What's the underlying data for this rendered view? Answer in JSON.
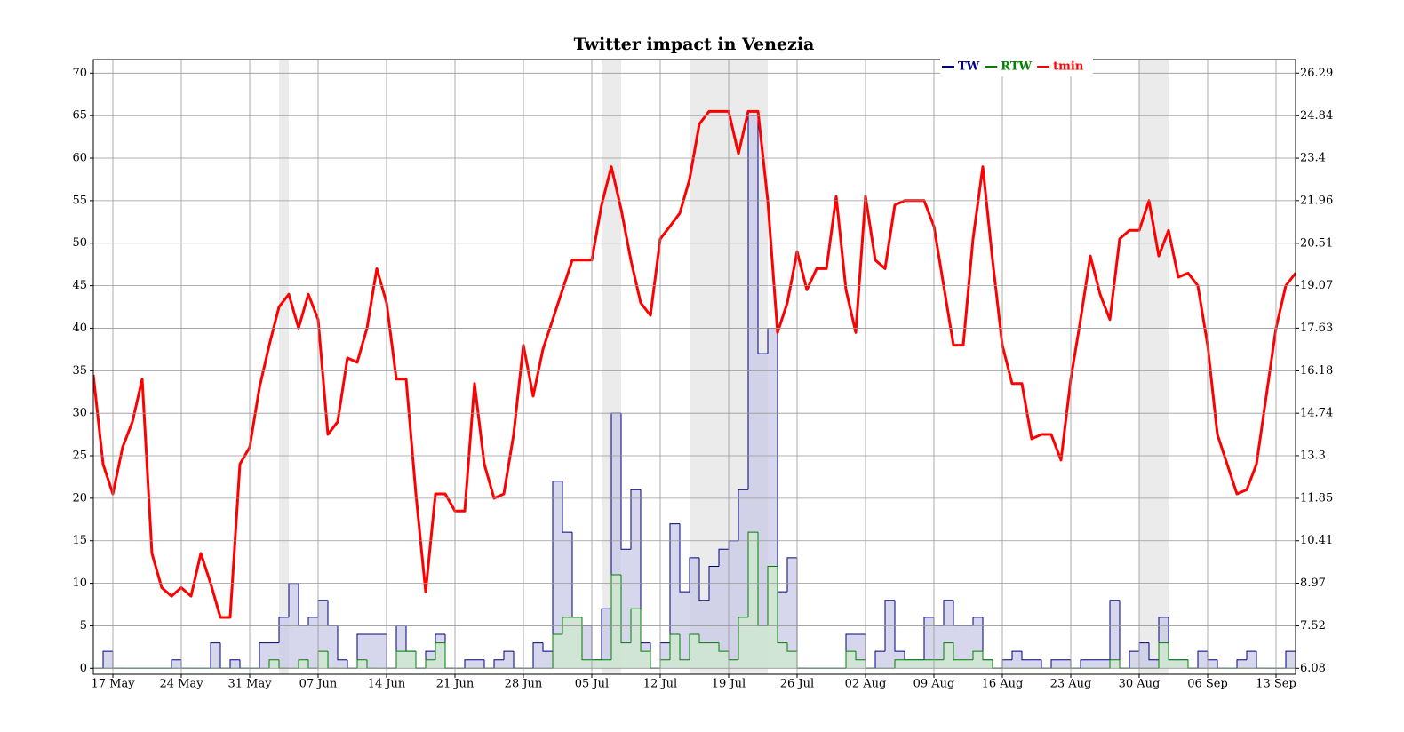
{
  "chart_data": {
    "type": "step-line",
    "title": "Twitter impact in Venezia",
    "x": [
      -2,
      -1,
      0,
      1,
      2,
      3,
      4,
      5,
      6,
      7,
      8,
      9,
      10,
      11,
      12,
      13,
      14,
      15,
      16,
      17,
      18,
      19,
      20,
      21,
      22,
      23,
      24,
      25,
      26,
      27,
      28,
      29,
      30,
      31,
      32,
      33,
      34,
      35,
      36,
      37,
      38,
      39,
      40,
      41,
      42,
      43,
      44,
      45,
      46,
      47,
      48,
      49,
      50,
      51,
      52,
      53,
      54,
      55,
      56,
      57,
      58,
      59,
      60,
      61,
      62,
      63,
      64,
      65,
      66,
      67,
      68,
      69,
      70,
      71,
      72,
      73,
      74,
      75,
      76,
      77,
      78,
      79,
      80,
      81,
      82,
      83,
      84,
      85,
      86,
      87,
      88,
      89,
      90,
      91,
      92,
      93,
      94,
      95,
      96,
      97,
      98,
      99,
      100,
      101,
      102,
      103,
      104,
      105,
      106,
      107,
      108,
      109,
      110,
      111,
      112,
      113,
      114,
      115,
      116,
      117,
      118,
      119,
      120,
      121
    ],
    "step": "post",
    "series": [
      {
        "name": "TW",
        "color": "#000080",
        "fill": "#c8c8e6",
        "kind": "step",
        "values": [
          0,
          2,
          0,
          0,
          0,
          0,
          0,
          0,
          1,
          0,
          0,
          0,
          3,
          0,
          1,
          0,
          0,
          3,
          3,
          6,
          10,
          5,
          6,
          8,
          5,
          1,
          0,
          4,
          4,
          4,
          0,
          5,
          2,
          0,
          2,
          4,
          0,
          0,
          1,
          1,
          0,
          1,
          2,
          0,
          0,
          3,
          2,
          22,
          16,
          6,
          5,
          1,
          7,
          30,
          14,
          21,
          3,
          0,
          3,
          17,
          9,
          13,
          8,
          12,
          14,
          15,
          21,
          65,
          37,
          40,
          9,
          13,
          0,
          0,
          0,
          0,
          0,
          4,
          4,
          0,
          2,
          8,
          2,
          1,
          1,
          6,
          5,
          8,
          5,
          5,
          6,
          1,
          0,
          1,
          2,
          1,
          1,
          0,
          1,
          1,
          0,
          1,
          1,
          1,
          8,
          0,
          2,
          3,
          1,
          6,
          1,
          1,
          0,
          2,
          1,
          0,
          0,
          1,
          2,
          0,
          0,
          0,
          2,
          0
        ]
      },
      {
        "name": "RTW",
        "color": "#008000",
        "fill": "#cfeacf",
        "kind": "step",
        "values": [
          0,
          0,
          0,
          0,
          0,
          0,
          0,
          0,
          0,
          0,
          0,
          0,
          0,
          0,
          0,
          0,
          0,
          0,
          1,
          0,
          0,
          1,
          0,
          2,
          0,
          0,
          0,
          1,
          0,
          0,
          0,
          2,
          2,
          0,
          1,
          3,
          0,
          0,
          0,
          0,
          0,
          0,
          0,
          0,
          0,
          0,
          0,
          4,
          6,
          6,
          1,
          1,
          1,
          11,
          3,
          7,
          2,
          0,
          1,
          4,
          1,
          4,
          3,
          3,
          2,
          1,
          6,
          16,
          5,
          12,
          3,
          2,
          0,
          0,
          0,
          0,
          0,
          2,
          1,
          0,
          0,
          0,
          1,
          1,
          1,
          1,
          1,
          3,
          1,
          1,
          2,
          1,
          0,
          0,
          0,
          0,
          0,
          0,
          0,
          0,
          0,
          0,
          0,
          0,
          1,
          0,
          0,
          0,
          0,
          3,
          1,
          1,
          0,
          0,
          0,
          0,
          0,
          0,
          0,
          0,
          0,
          0,
          0,
          0
        ]
      },
      {
        "name": "tmin",
        "color": "#ff0000",
        "kind": "line",
        "axis": "y2",
        "values": [
          16.04,
          13.01,
          12.0,
          13.59,
          14.45,
          15.9,
          9.98,
          8.82,
          8.53,
          8.82,
          8.53,
          9.98,
          8.97,
          7.81,
          7.81,
          13.01,
          13.59,
          15.61,
          17.05,
          18.35,
          18.78,
          17.63,
          18.78,
          17.92,
          14.02,
          14.45,
          16.62,
          16.47,
          17.63,
          19.65,
          18.49,
          15.9,
          15.9,
          12.0,
          8.68,
          12.0,
          12.0,
          11.42,
          11.42,
          15.75,
          13.01,
          11.85,
          12.0,
          14.02,
          17.05,
          15.32,
          16.91,
          17.92,
          18.93,
          19.94,
          19.94,
          19.94,
          21.81,
          23.11,
          21.67,
          19.94,
          18.49,
          18.06,
          20.66,
          21.09,
          21.53,
          22.68,
          24.56,
          24.99,
          24.99,
          24.99,
          23.55,
          24.99,
          24.99,
          21.96,
          17.48,
          18.49,
          20.23,
          18.93,
          19.65,
          19.65,
          22.1,
          18.93,
          17.48,
          22.1,
          19.94,
          19.65,
          21.81,
          21.96,
          21.96,
          21.96,
          21.09,
          19.07,
          17.05,
          17.05,
          20.66,
          23.11,
          19.94,
          17.05,
          15.75,
          15.75,
          13.87,
          14.02,
          14.02,
          13.15,
          15.9,
          17.92,
          20.08,
          18.78,
          17.92,
          20.66,
          20.95,
          20.95,
          21.96,
          20.08,
          20.95,
          19.36,
          19.5,
          19.07,
          17.05,
          14.02,
          13.01,
          12.0,
          12.14,
          13.01,
          15.32,
          17.63,
          19.07,
          19.5
        ]
      }
    ],
    "highlight_spans": [
      [
        17,
        18
      ],
      [
        50,
        52
      ],
      [
        59,
        67
      ],
      [
        105,
        108
      ]
    ],
    "xlim": [
      -2,
      121
    ],
    "xticks": [
      {
        "value": 0,
        "label": "17 May"
      },
      {
        "value": 7,
        "label": "24 May"
      },
      {
        "value": 14,
        "label": "31 May"
      },
      {
        "value": 21,
        "label": "07 Jun"
      },
      {
        "value": 28,
        "label": "14 Jun"
      },
      {
        "value": 35,
        "label": "21 Jun"
      },
      {
        "value": 42,
        "label": "28 Jun"
      },
      {
        "value": 49,
        "label": "05 Jul"
      },
      {
        "value": 56,
        "label": "12 Jul"
      },
      {
        "value": 63,
        "label": "19 Jul"
      },
      {
        "value": 70,
        "label": "26 Jul"
      },
      {
        "value": 77,
        "label": "02 Aug"
      },
      {
        "value": 84,
        "label": "09 Aug"
      },
      {
        "value": 91,
        "label": "16 Aug"
      },
      {
        "value": 98,
        "label": "23 Aug"
      },
      {
        "value": 105,
        "label": "30 Aug"
      },
      {
        "value": 112,
        "label": "06 Sep"
      },
      {
        "value": 119,
        "label": "13 Sep"
      }
    ],
    "ylim": [
      -0.7,
      71.6
    ],
    "yticks": [
      0,
      5,
      10,
      15,
      20,
      25,
      30,
      35,
      40,
      45,
      50,
      55,
      60,
      65,
      70
    ],
    "y2lim": [
      5.878,
      26.75
    ],
    "y2ticks": [
      6.08,
      7.52,
      8.97,
      10.41,
      11.85,
      13.3,
      14.74,
      16.18,
      17.63,
      19.07,
      20.51,
      21.96,
      23.4,
      24.84,
      26.29
    ],
    "grid": true
  }
}
